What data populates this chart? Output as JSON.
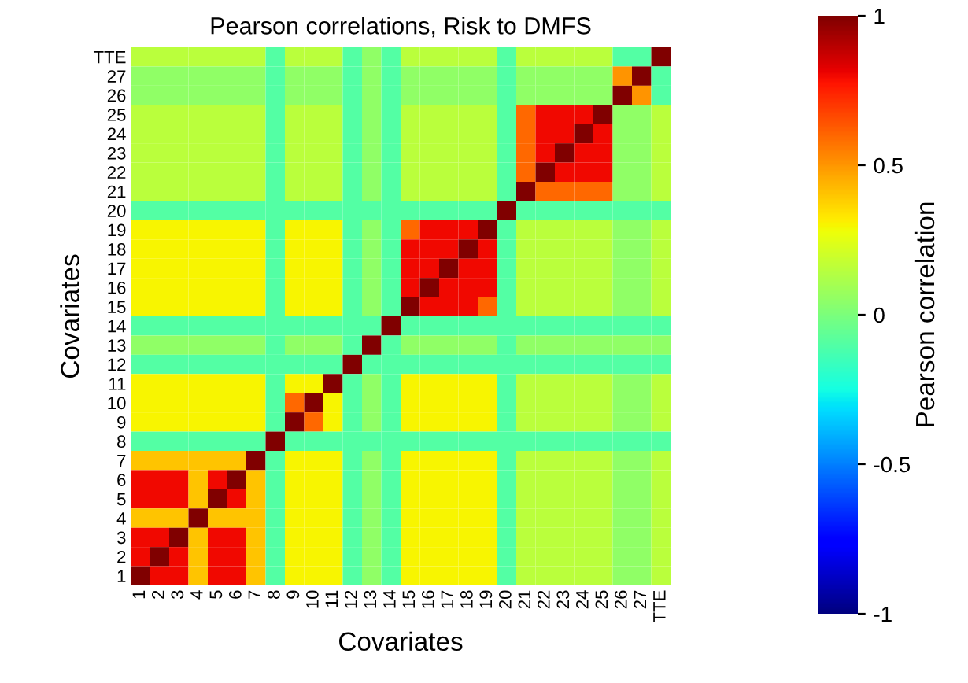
{
  "chart_data": {
    "type": "heatmap",
    "title": "Pearson correlations, Risk to DMFS",
    "xlabel": "Covariates",
    "ylabel": "Covariates",
    "clabel": "Pearson correlation",
    "categories": [
      "1",
      "2",
      "3",
      "4",
      "5",
      "6",
      "7",
      "8",
      "9",
      "10",
      "11",
      "12",
      "13",
      "14",
      "15",
      "16",
      "17",
      "18",
      "19",
      "20",
      "21",
      "22",
      "23",
      "24",
      "25",
      "26",
      "27",
      "TTE"
    ],
    "y_categories": [
      "TTE",
      "27",
      "26",
      "25",
      "24",
      "23",
      "22",
      "21",
      "20",
      "19",
      "18",
      "17",
      "16",
      "15",
      "14",
      "13",
      "12",
      "11",
      "10",
      "9",
      "8",
      "7",
      "6",
      "5",
      "4",
      "3",
      "2",
      "1"
    ],
    "clim": [
      -1,
      1
    ],
    "cticks": [
      -1,
      -0.5,
      0,
      0.5,
      1
    ],
    "cells": [
      [
        0.15,
        0.15,
        0.15,
        0.15,
        0.15,
        0.15,
        0.15,
        -0.1,
        0.15,
        0.15,
        0.15,
        -0.1,
        0.05,
        -0.1,
        0.15,
        0.15,
        0.15,
        0.15,
        0.15,
        -0.1,
        0.15,
        0.15,
        0.15,
        0.15,
        0.15,
        -0.1,
        -0.1,
        1
      ],
      [
        0.05,
        0.05,
        0.05,
        0.05,
        0.05,
        0.05,
        0.05,
        -0.1,
        0.05,
        0.05,
        0.05,
        -0.1,
        0.05,
        -0.1,
        0.05,
        0.05,
        0.05,
        0.05,
        0.05,
        -0.1,
        0.05,
        0.05,
        0.05,
        0.05,
        0.05,
        0.5,
        1,
        -0.1
      ],
      [
        0.05,
        0.05,
        0.05,
        0.05,
        0.05,
        0.05,
        0.05,
        -0.1,
        0.05,
        0.05,
        0.05,
        -0.1,
        0.05,
        -0.1,
        0.05,
        0.05,
        0.05,
        0.05,
        0.05,
        -0.1,
        0.05,
        0.05,
        0.05,
        0.05,
        0.05,
        1,
        0.5,
        -0.1
      ],
      [
        0.15,
        0.15,
        0.15,
        0.15,
        0.15,
        0.15,
        0.15,
        -0.1,
        0.15,
        0.15,
        0.15,
        -0.1,
        0.05,
        -0.1,
        0.15,
        0.15,
        0.15,
        0.15,
        0.15,
        -0.1,
        0.6,
        0.8,
        0.8,
        0.8,
        1,
        0.05,
        0.05,
        0.15
      ],
      [
        0.15,
        0.15,
        0.15,
        0.15,
        0.15,
        0.15,
        0.15,
        -0.1,
        0.15,
        0.15,
        0.15,
        -0.1,
        0.05,
        -0.1,
        0.15,
        0.15,
        0.15,
        0.15,
        0.15,
        -0.1,
        0.6,
        0.8,
        0.8,
        1,
        0.8,
        0.05,
        0.05,
        0.15
      ],
      [
        0.15,
        0.15,
        0.15,
        0.15,
        0.15,
        0.15,
        0.15,
        -0.1,
        0.15,
        0.15,
        0.15,
        -0.1,
        0.05,
        -0.1,
        0.15,
        0.15,
        0.15,
        0.15,
        0.15,
        -0.1,
        0.6,
        0.8,
        1,
        0.8,
        0.8,
        0.05,
        0.05,
        0.15
      ],
      [
        0.15,
        0.15,
        0.15,
        0.15,
        0.15,
        0.15,
        0.15,
        -0.1,
        0.15,
        0.15,
        0.15,
        -0.1,
        0.05,
        -0.1,
        0.15,
        0.15,
        0.15,
        0.15,
        0.15,
        -0.1,
        0.6,
        1,
        0.8,
        0.8,
        0.8,
        0.05,
        0.05,
        0.15
      ],
      [
        0.15,
        0.15,
        0.15,
        0.15,
        0.15,
        0.15,
        0.15,
        -0.1,
        0.15,
        0.15,
        0.15,
        -0.1,
        0.05,
        -0.1,
        0.15,
        0.15,
        0.15,
        0.15,
        0.15,
        -0.1,
        1,
        0.6,
        0.6,
        0.6,
        0.6,
        0.05,
        0.05,
        0.15
      ],
      [
        -0.1,
        -0.1,
        -0.1,
        -0.1,
        -0.1,
        -0.1,
        -0.1,
        -0.1,
        -0.1,
        -0.1,
        -0.1,
        -0.1,
        -0.1,
        -0.1,
        -0.1,
        -0.1,
        -0.1,
        -0.1,
        -0.1,
        1,
        -0.1,
        -0.1,
        -0.1,
        -0.1,
        -0.1,
        -0.1,
        -0.1,
        -0.1
      ],
      [
        0.3,
        0.3,
        0.3,
        0.3,
        0.3,
        0.3,
        0.3,
        -0.1,
        0.3,
        0.3,
        0.3,
        -0.1,
        0.05,
        -0.1,
        0.6,
        0.8,
        0.8,
        0.8,
        1,
        -0.1,
        0.15,
        0.15,
        0.15,
        0.15,
        0.15,
        0.05,
        0.05,
        0.15
      ],
      [
        0.3,
        0.3,
        0.3,
        0.3,
        0.3,
        0.3,
        0.3,
        -0.1,
        0.3,
        0.3,
        0.3,
        -0.1,
        0.05,
        -0.1,
        0.8,
        0.8,
        0.8,
        1,
        0.8,
        -0.1,
        0.15,
        0.15,
        0.15,
        0.15,
        0.15,
        0.05,
        0.05,
        0.15
      ],
      [
        0.3,
        0.3,
        0.3,
        0.3,
        0.3,
        0.3,
        0.3,
        -0.1,
        0.3,
        0.3,
        0.3,
        -0.1,
        0.05,
        -0.1,
        0.8,
        0.8,
        1,
        0.8,
        0.8,
        -0.1,
        0.15,
        0.15,
        0.15,
        0.15,
        0.15,
        0.05,
        0.05,
        0.15
      ],
      [
        0.3,
        0.3,
        0.3,
        0.3,
        0.3,
        0.3,
        0.3,
        -0.1,
        0.3,
        0.3,
        0.3,
        -0.1,
        0.05,
        -0.1,
        0.8,
        1,
        0.8,
        0.8,
        0.8,
        -0.1,
        0.15,
        0.15,
        0.15,
        0.15,
        0.15,
        0.05,
        0.05,
        0.15
      ],
      [
        0.3,
        0.3,
        0.3,
        0.3,
        0.3,
        0.3,
        0.3,
        -0.1,
        0.3,
        0.3,
        0.3,
        -0.1,
        0.05,
        -0.1,
        1,
        0.8,
        0.8,
        0.8,
        0.6,
        -0.1,
        0.15,
        0.15,
        0.15,
        0.15,
        0.15,
        0.05,
        0.05,
        0.15
      ],
      [
        -0.1,
        -0.1,
        -0.1,
        -0.1,
        -0.1,
        -0.1,
        -0.1,
        -0.1,
        -0.1,
        -0.1,
        -0.1,
        -0.1,
        -0.1,
        1,
        -0.1,
        -0.1,
        -0.1,
        -0.1,
        -0.1,
        -0.1,
        -0.1,
        -0.1,
        -0.1,
        -0.1,
        -0.1,
        -0.1,
        -0.1,
        -0.1
      ],
      [
        0.05,
        0.05,
        0.05,
        0.05,
        0.05,
        0.05,
        0.05,
        -0.1,
        0.05,
        0.05,
        0.05,
        -0.1,
        1,
        -0.1,
        0.05,
        0.05,
        0.05,
        0.05,
        0.05,
        -0.1,
        0.05,
        0.05,
        0.05,
        0.05,
        0.05,
        0.05,
        0.05,
        0.05
      ],
      [
        -0.1,
        -0.1,
        -0.1,
        -0.1,
        -0.1,
        -0.1,
        -0.1,
        -0.1,
        -0.1,
        -0.1,
        -0.1,
        1,
        -0.1,
        -0.1,
        -0.1,
        -0.1,
        -0.1,
        -0.1,
        -0.1,
        -0.1,
        -0.1,
        -0.1,
        -0.1,
        -0.1,
        -0.1,
        -0.1,
        -0.1,
        -0.1
      ],
      [
        0.3,
        0.3,
        0.3,
        0.3,
        0.3,
        0.3,
        0.3,
        -0.1,
        0.3,
        0.3,
        1,
        -0.1,
        0.05,
        -0.1,
        0.3,
        0.3,
        0.3,
        0.3,
        0.3,
        -0.1,
        0.15,
        0.15,
        0.15,
        0.15,
        0.15,
        0.05,
        0.05,
        0.15
      ],
      [
        0.3,
        0.3,
        0.3,
        0.3,
        0.3,
        0.3,
        0.3,
        -0.1,
        0.6,
        1,
        0.3,
        -0.1,
        0.05,
        -0.1,
        0.3,
        0.3,
        0.3,
        0.3,
        0.3,
        -0.1,
        0.15,
        0.15,
        0.15,
        0.15,
        0.15,
        0.05,
        0.05,
        0.15
      ],
      [
        0.3,
        0.3,
        0.3,
        0.3,
        0.3,
        0.3,
        0.3,
        -0.1,
        1,
        0.6,
        0.3,
        -0.1,
        0.05,
        -0.1,
        0.3,
        0.3,
        0.3,
        0.3,
        0.3,
        -0.1,
        0.15,
        0.15,
        0.15,
        0.15,
        0.15,
        0.05,
        0.05,
        0.15
      ],
      [
        -0.1,
        -0.1,
        -0.1,
        -0.1,
        -0.1,
        -0.1,
        -0.1,
        1,
        -0.1,
        -0.1,
        -0.1,
        -0.1,
        -0.1,
        -0.1,
        -0.1,
        -0.1,
        -0.1,
        -0.1,
        -0.1,
        -0.1,
        -0.1,
        -0.1,
        -0.1,
        -0.1,
        -0.1,
        -0.1,
        -0.1,
        -0.1
      ],
      [
        0.4,
        0.4,
        0.4,
        0.4,
        0.4,
        0.4,
        1,
        -0.1,
        0.3,
        0.3,
        0.3,
        -0.1,
        0.05,
        -0.1,
        0.3,
        0.3,
        0.3,
        0.3,
        0.3,
        -0.1,
        0.15,
        0.15,
        0.15,
        0.15,
        0.15,
        0.05,
        0.05,
        0.15
      ],
      [
        0.8,
        0.8,
        0.8,
        0.4,
        0.8,
        1,
        0.4,
        -0.1,
        0.3,
        0.3,
        0.3,
        -0.1,
        0.05,
        -0.1,
        0.3,
        0.3,
        0.3,
        0.3,
        0.3,
        -0.1,
        0.15,
        0.15,
        0.15,
        0.15,
        0.15,
        0.05,
        0.05,
        0.15
      ],
      [
        0.8,
        0.8,
        0.8,
        0.4,
        1,
        0.8,
        0.4,
        -0.1,
        0.3,
        0.3,
        0.3,
        -0.1,
        0.05,
        -0.1,
        0.3,
        0.3,
        0.3,
        0.3,
        0.3,
        -0.1,
        0.15,
        0.15,
        0.15,
        0.15,
        0.15,
        0.05,
        0.05,
        0.15
      ],
      [
        0.4,
        0.4,
        0.4,
        1,
        0.4,
        0.4,
        0.4,
        -0.1,
        0.3,
        0.3,
        0.3,
        -0.1,
        0.05,
        -0.1,
        0.3,
        0.3,
        0.3,
        0.3,
        0.3,
        -0.1,
        0.15,
        0.15,
        0.15,
        0.15,
        0.15,
        0.05,
        0.05,
        0.15
      ],
      [
        0.8,
        0.8,
        1,
        0.4,
        0.8,
        0.8,
        0.4,
        -0.1,
        0.3,
        0.3,
        0.3,
        -0.1,
        0.05,
        -0.1,
        0.3,
        0.3,
        0.3,
        0.3,
        0.3,
        -0.1,
        0.15,
        0.15,
        0.15,
        0.15,
        0.15,
        0.05,
        0.05,
        0.15
      ],
      [
        0.8,
        1,
        0.8,
        0.4,
        0.8,
        0.8,
        0.4,
        -0.1,
        0.3,
        0.3,
        0.3,
        -0.1,
        0.05,
        -0.1,
        0.3,
        0.3,
        0.3,
        0.3,
        0.3,
        -0.1,
        0.15,
        0.15,
        0.15,
        0.15,
        0.15,
        0.05,
        0.05,
        0.15
      ],
      [
        1,
        0.8,
        0.8,
        0.4,
        0.8,
        0.8,
        0.4,
        -0.1,
        0.3,
        0.3,
        0.3,
        -0.1,
        0.05,
        -0.1,
        0.3,
        0.3,
        0.3,
        0.3,
        0.3,
        -0.1,
        0.15,
        0.15,
        0.15,
        0.15,
        0.15,
        0.05,
        0.05,
        0.15
      ]
    ]
  }
}
